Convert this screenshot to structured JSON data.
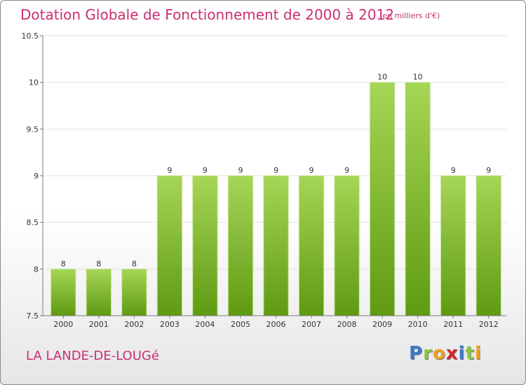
{
  "title": "Dotation Globale de Fonctionnement de 2000 à 2012",
  "unit_note": "(en milliers d'€)",
  "commune": "LA LANDE-DE-LOUGé",
  "logo": {
    "text": "Proxiti",
    "letters": [
      {
        "char": "P",
        "color": "#3c78c8"
      },
      {
        "char": "r",
        "color": "#8cc83c"
      },
      {
        "char": "o",
        "color": "#f0a020"
      },
      {
        "char": "x",
        "color": "#d02828"
      },
      {
        "char": "i",
        "color": "#3c78c8"
      },
      {
        "char": "t",
        "color": "#8cc83c"
      },
      {
        "char": "i",
        "color": "#f0a020"
      }
    ]
  },
  "colors": {
    "accent": "#cc2f72",
    "bar_top": "#a6d656",
    "bar_bottom": "#5f9a12",
    "bar_edge": "#c8e69a",
    "grid": "#e2e2e2",
    "axis": "#7a7a7a"
  },
  "chart_data": {
    "type": "bar",
    "title": "Dotation Globale de Fonctionnement de 2000 à 2012",
    "categories": [
      "2000",
      "2001",
      "2002",
      "2003",
      "2004",
      "2005",
      "2006",
      "2007",
      "2008",
      "2009",
      "2010",
      "2011",
      "2012"
    ],
    "values": [
      8,
      8,
      8,
      9,
      9,
      9,
      9,
      9,
      9,
      10,
      10,
      9,
      9
    ],
    "data_labels": [
      "8",
      "8",
      "8",
      "9",
      "9",
      "9",
      "9",
      "9",
      "9",
      "10",
      "10",
      "9",
      "9"
    ],
    "ylim": [
      7.5,
      10.5
    ],
    "yticks": [
      7.5,
      8,
      8.5,
      9,
      9.5,
      10,
      10.5
    ],
    "ytick_labels": [
      "7.5",
      "8",
      "8.5",
      "9",
      "9.5",
      "10",
      "10.5"
    ],
    "grid": true,
    "xlabel": "",
    "ylabel": ""
  }
}
